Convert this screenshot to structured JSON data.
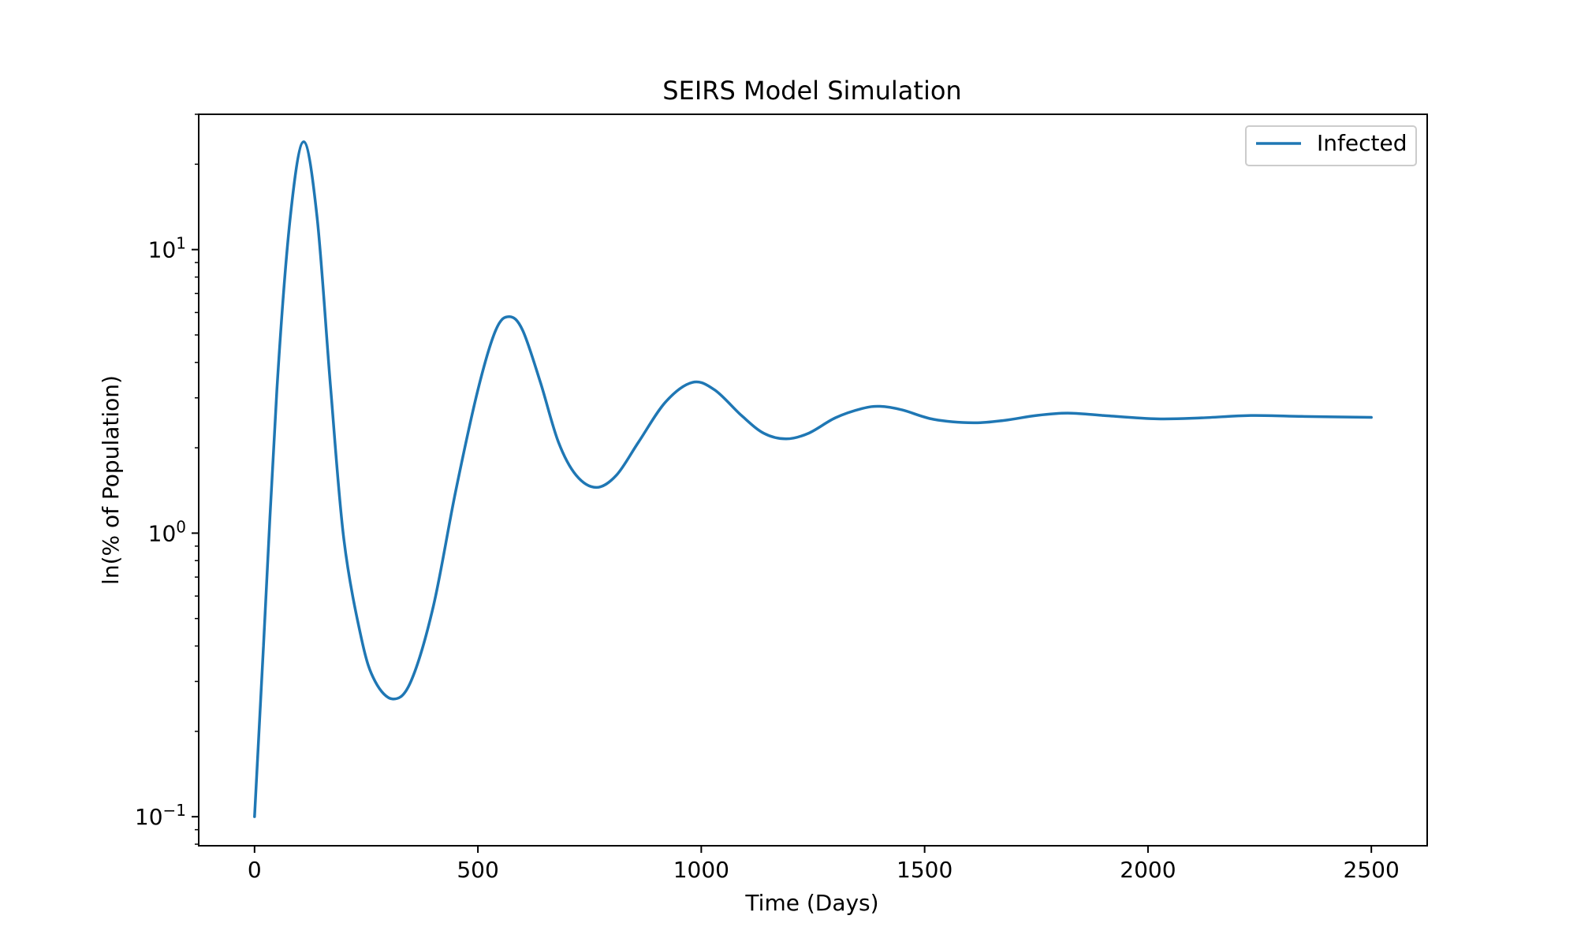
{
  "chart_data": {
    "type": "line",
    "title": "SEIRS Model Simulation",
    "xlabel": "Time (Days)",
    "ylabel": "ln(% of Population)",
    "xlim": [
      -125,
      2625
    ],
    "ylim": [
      0.079,
      30
    ],
    "yscale": "log",
    "xticks": [
      0,
      500,
      1000,
      1500,
      2000,
      2500
    ],
    "xtick_labels": [
      "0",
      "500",
      "1000",
      "1500",
      "2000",
      "2500"
    ],
    "yticks": [
      {
        "base": "10",
        "exp": "−1",
        "value": 0.1
      },
      {
        "base": "10",
        "exp": "0",
        "value": 1
      },
      {
        "base": "10",
        "exp": "1",
        "value": 10
      }
    ],
    "grid": false,
    "legend": {
      "position": "top-right"
    },
    "series": [
      {
        "name": "Infected",
        "color": "#1f77b4",
        "points": [
          [
            0,
            0.1
          ],
          [
            20,
            0.4
          ],
          [
            50,
            3.2
          ],
          [
            80,
            13
          ],
          [
            110,
            24
          ],
          [
            140,
            13
          ],
          [
            170,
            3.3
          ],
          [
            200,
            0.95
          ],
          [
            240,
            0.42
          ],
          [
            270,
            0.3
          ],
          [
            310,
            0.26
          ],
          [
            350,
            0.3
          ],
          [
            400,
            0.55
          ],
          [
            450,
            1.4
          ],
          [
            500,
            3.2
          ],
          [
            540,
            5.2
          ],
          [
            570,
            5.8
          ],
          [
            600,
            5.2
          ],
          [
            640,
            3.4
          ],
          [
            680,
            2.1
          ],
          [
            720,
            1.6
          ],
          [
            765,
            1.45
          ],
          [
            810,
            1.6
          ],
          [
            860,
            2.1
          ],
          [
            920,
            2.9
          ],
          [
            980,
            3.4
          ],
          [
            1030,
            3.2
          ],
          [
            1090,
            2.6
          ],
          [
            1140,
            2.25
          ],
          [
            1190,
            2.15
          ],
          [
            1240,
            2.25
          ],
          [
            1300,
            2.55
          ],
          [
            1360,
            2.75
          ],
          [
            1400,
            2.8
          ],
          [
            1450,
            2.72
          ],
          [
            1520,
            2.52
          ],
          [
            1610,
            2.45
          ],
          [
            1680,
            2.5
          ],
          [
            1750,
            2.6
          ],
          [
            1820,
            2.65
          ],
          [
            1900,
            2.6
          ],
          [
            2020,
            2.53
          ],
          [
            2120,
            2.55
          ],
          [
            2230,
            2.6
          ],
          [
            2350,
            2.58
          ],
          [
            2500,
            2.56
          ]
        ]
      }
    ]
  }
}
